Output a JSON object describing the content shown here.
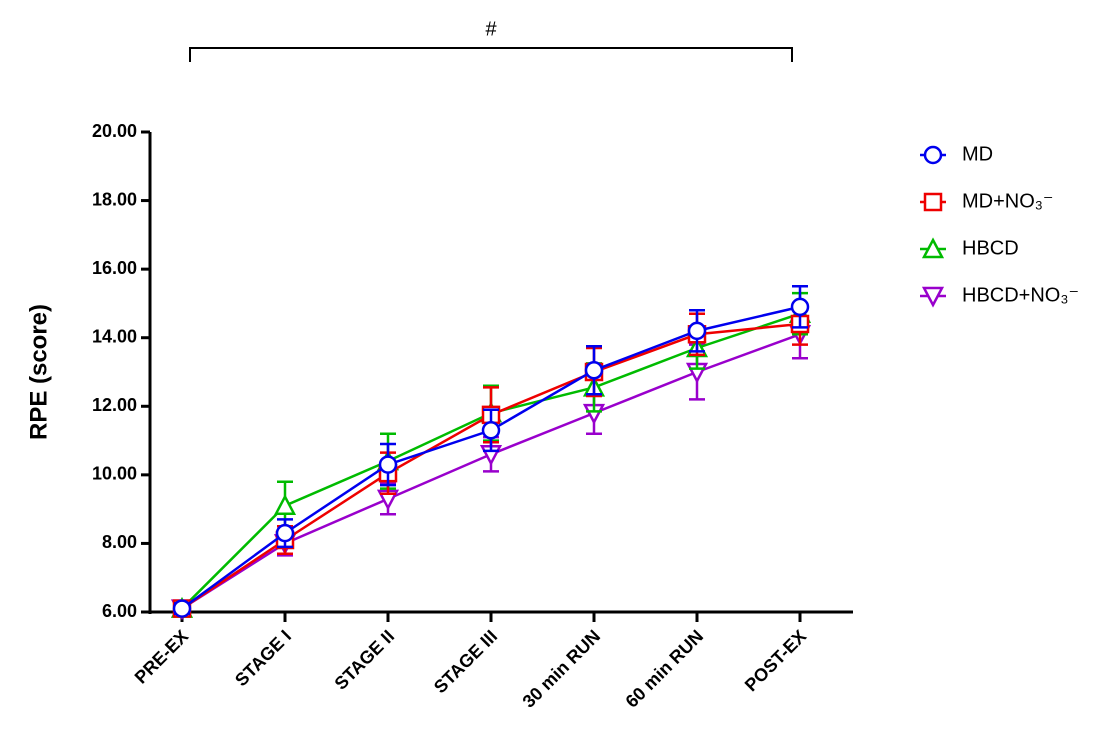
{
  "chart_data": {
    "type": "line",
    "ylabel": "RPE (score)",
    "annotation": "#",
    "categories": [
      "PRE-EX",
      "STAGE I",
      "STAGE II",
      "STAGE III",
      "30 min RUN",
      "60 min RUN",
      "POST-EX"
    ],
    "ylim": [
      6,
      20
    ],
    "yticks": [
      {
        "value": 6,
        "label": "6.00"
      },
      {
        "value": 8,
        "label": "8.00"
      },
      {
        "value": 10,
        "label": "10.00"
      },
      {
        "value": 12,
        "label": "12.00"
      },
      {
        "value": 14,
        "label": "14.00"
      },
      {
        "value": 16,
        "label": "16.00"
      },
      {
        "value": 18,
        "label": "18.00"
      },
      {
        "value": 20,
        "label": "20.00"
      }
    ],
    "legend": "right",
    "series": [
      {
        "name": "MD",
        "color": "#0000ee",
        "marker": "circle",
        "values": [
          6.1,
          8.3,
          10.3,
          11.3,
          13.05,
          14.2,
          14.9
        ],
        "errors": [
          0.15,
          0.4,
          0.6,
          0.6,
          0.7,
          0.6,
          0.6
        ]
      },
      {
        "name": "MD+NO₃⁻",
        "color": "#ee0000",
        "marker": "square",
        "values": [
          6.1,
          8.1,
          10.05,
          11.75,
          13.0,
          14.1,
          14.4
        ],
        "errors": [
          0.15,
          0.4,
          0.6,
          0.8,
          0.7,
          0.6,
          0.6
        ]
      },
      {
        "name": "HBCD",
        "color": "#00bb00",
        "marker": "triangle-up",
        "values": [
          6.1,
          9.1,
          10.4,
          11.8,
          12.55,
          13.7,
          14.7
        ],
        "errors": [
          0.15,
          0.7,
          0.8,
          0.8,
          0.7,
          0.6,
          0.6
        ]
      },
      {
        "name": "HBCD+NO₃⁻",
        "color": "#9900cc",
        "marker": "triangle-down",
        "values": [
          6.1,
          8.0,
          9.3,
          10.6,
          11.8,
          13.0,
          14.1
        ],
        "errors": [
          0.15,
          0.35,
          0.45,
          0.5,
          0.6,
          0.8,
          0.7
        ]
      }
    ]
  }
}
